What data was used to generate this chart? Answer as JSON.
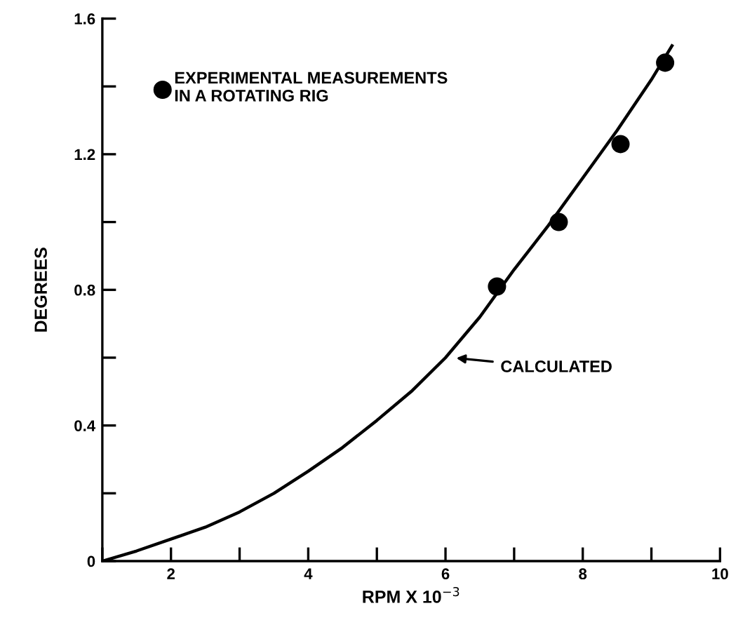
{
  "chart_data": {
    "type": "line",
    "xlabel": "RPM X 10$^{−3}$",
    "ylabel": "DEGREES",
    "series": [
      {
        "color": "#000000",
        "marker": "none",
        "x": [
          1,
          1.5,
          2,
          2.5,
          3,
          3.5,
          4,
          4.5,
          5,
          5.5,
          6,
          6.5,
          7,
          7.5,
          8,
          8.5,
          9,
          9.3
        ],
        "values": [
          0,
          0.03,
          0.065,
          0.1,
          0.145,
          0.2,
          0.265,
          0.335,
          0.415,
          0.5,
          0.6,
          0.72,
          0.86,
          0.99,
          1.13,
          1.27,
          1.42,
          1.52
        ]
      },
      {
        "type": "scatter",
        "name": "EXPERIMENTAL MEASUREMENTS\nIN A ROTATING RIG",
        "color": "#000000",
        "marker": "circle",
        "x": [
          6.75,
          7.65,
          8.55,
          9.2
        ],
        "values": [
          0.81,
          1.0,
          1.23,
          1.47
        ]
      }
    ],
    "annotations": [
      {
        "text": "CALCULATED",
        "x": 6.1,
        "y": 0.6
      }
    ],
    "xlim": [
      1,
      10
    ],
    "ylim": [
      0,
      1.6
    ],
    "xticks": [
      {
        "value": 1,
        "label": null
      },
      2,
      {
        "value": 3,
        "label": null
      },
      4,
      {
        "value": 5,
        "label": null
      },
      6,
      {
        "value": 7,
        "label": null
      },
      8,
      {
        "value": 9,
        "label": null
      },
      10
    ],
    "yticks": [
      0,
      {
        "value": 0.2,
        "label": null
      },
      0.4,
      {
        "value": 0.6,
        "label": null
      },
      0.8,
      {
        "value": 1.0,
        "label": null
      },
      1.2,
      {
        "value": 1.4,
        "label": null
      },
      1.6
    ],
    "grid": false,
    "legend": "top left"
  }
}
